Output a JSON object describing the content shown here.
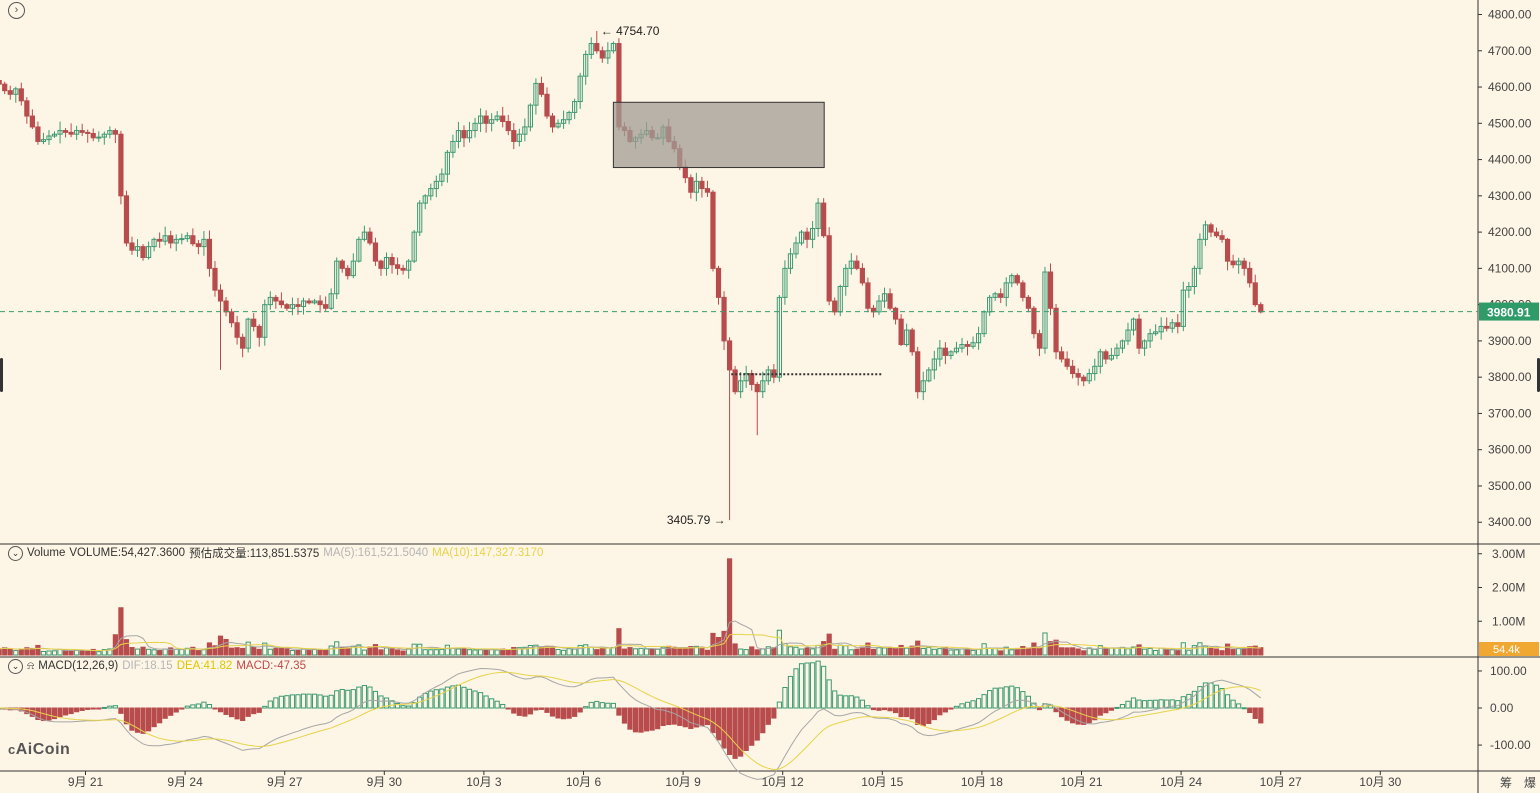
{
  "chart_data": [
    {
      "type": "candlestick",
      "panel": "price",
      "ylim": [
        3340,
        4840
      ],
      "y_ticks": [
        "4800.00",
        "4700.00",
        "4600.00",
        "4500.00",
        "4400.00",
        "4300.00",
        "4200.00",
        "4100.00",
        "4000.00",
        "3900.00",
        "3800.00",
        "3700.00",
        "3600.00",
        "3500.00",
        "3400.00"
      ],
      "x_ticks": [
        "9月 21",
        "9月 24",
        "9月 27",
        "9月 30",
        "10月 3",
        "10月 6",
        "10月 9",
        "10月 12",
        "10月 15",
        "10月 18",
        "10月 21",
        "10月 24",
        "10月 27",
        "10月 30"
      ],
      "x_tick_days": [
        0,
        3,
        6,
        9,
        12,
        15,
        18,
        21,
        24,
        27,
        30,
        33,
        36,
        39
      ],
      "candles_per_day": 6,
      "first_candle_day": -2.6,
      "current_price": 3980.91,
      "current_price_label": "3980.91",
      "high_annotation": {
        "value": 4754.7,
        "label": "4754.70"
      },
      "low_annotation": {
        "value": 3405.79,
        "label": "3405.79"
      },
      "box_zone": {
        "day_from": 15.9,
        "day_to": 22.25,
        "price_low": 4378,
        "price_high": 4558
      },
      "dotted_level": {
        "day_from": 19.45,
        "day_to": 24.0,
        "price": 3808
      },
      "closes": [
        4608,
        4590,
        4580,
        4595,
        4562,
        4520,
        4490,
        4450,
        4455,
        4465,
        4470,
        4480,
        4475,
        4470,
        4480,
        4475,
        4472,
        4460,
        4462,
        4470,
        4480,
        4470,
        4300,
        4170,
        4150,
        4160,
        4130,
        4160,
        4180,
        4175,
        4190,
        4170,
        4180,
        4182,
        4190,
        4168,
        4160,
        4180,
        4100,
        4040,
        4010,
        3980,
        3950,
        3910,
        3880,
        3960,
        3940,
        3910,
        4000,
        4020,
        4010,
        4000,
        3990,
        4000,
        3995,
        4010,
        4005,
        4010,
        4000,
        3990,
        4030,
        4120,
        4100,
        4080,
        4120,
        4180,
        4200,
        4170,
        4120,
        4100,
        4130,
        4110,
        4100,
        4095,
        4120,
        4200,
        4280,
        4300,
        4320,
        4340,
        4360,
        4420,
        4450,
        4480,
        4460,
        4480,
        4500,
        4520,
        4500,
        4510,
        4520,
        4505,
        4480,
        4450,
        4470,
        4490,
        4550,
        4610,
        4580,
        4520,
        4490,
        4500,
        4510,
        4530,
        4560,
        4630,
        4690,
        4720,
        4700,
        4680,
        4700,
        4720,
        4490,
        4480,
        4450,
        4460,
        4470,
        4480,
        4460,
        4460,
        4490,
        4450,
        4430,
        4380,
        4350,
        4310,
        4340,
        4320,
        4310,
        4100,
        4020,
        3900,
        3820,
        3760,
        3790,
        3810,
        3780,
        3760,
        3790,
        3820,
        3800,
        4020,
        4100,
        4140,
        4170,
        4200,
        4180,
        4210,
        4280,
        4190,
        4010,
        3980,
        4050,
        4100,
        4120,
        4100,
        4060,
        3990,
        3980,
        4010,
        4030,
        3990,
        3960,
        3890,
        3930,
        3870,
        3760,
        3790,
        3820,
        3850,
        3880,
        3860,
        3870,
        3880,
        3890,
        3885,
        3895,
        3920,
        3980,
        4020,
        4030,
        4020,
        4060,
        4080,
        4060,
        4020,
        3990,
        3920,
        3880,
        4090,
        3990,
        3870,
        3850,
        3830,
        3810,
        3800,
        3790,
        3810,
        3830,
        3870,
        3850,
        3860,
        3880,
        3900,
        3930,
        3960,
        3880,
        3900,
        3920,
        3925,
        3940,
        3935,
        3950,
        3940,
        4040,
        4050,
        4100,
        4180,
        4220,
        4200,
        4190,
        4180,
        4120,
        4110,
        4120,
        4100,
        4060,
        4000,
        3980
      ]
    },
    {
      "type": "bar",
      "panel": "volume",
      "ylim": [
        0,
        3200000
      ],
      "y_ticks": [
        "3.00M",
        "2.00M",
        "1.00M"
      ],
      "y_tick_values": [
        3000000,
        2000000,
        1000000
      ],
      "header": "Volume",
      "volume_text": "VOLUME:54,427.3600",
      "estimate_text": "预估成交量:113,851.5375",
      "ma5_text": "MA(5):161,521.5040",
      "ma10_text": "MA(10):147,327.3170",
      "last_label": "54.4k"
    },
    {
      "type": "bar",
      "panel": "macd",
      "ylim": [
        -170,
        135
      ],
      "y_ticks": [
        "100.00",
        "0.00",
        "-100.00"
      ],
      "y_tick_values": [
        100,
        0,
        -100
      ],
      "header": "MACD(12,26,9)",
      "dif_text": "DIF:18.15",
      "dea_text": "DEA:41.82",
      "macd_text": "MACD:-47.35"
    }
  ],
  "toolbar": {
    "right_labels": [
      "筹",
      "爆"
    ]
  },
  "logo": {
    "text": "AiCoin"
  },
  "colors": {
    "bg": "#fdf6e6",
    "up": "#3d9a72",
    "down": "#b84c4c",
    "grid": "#cccccc",
    "axis_text": "#444444",
    "price_tag": "#2f9b69",
    "ma5": "#a6a6a6",
    "ma10": "#e8d34a",
    "box_fill": "#a09b94"
  }
}
